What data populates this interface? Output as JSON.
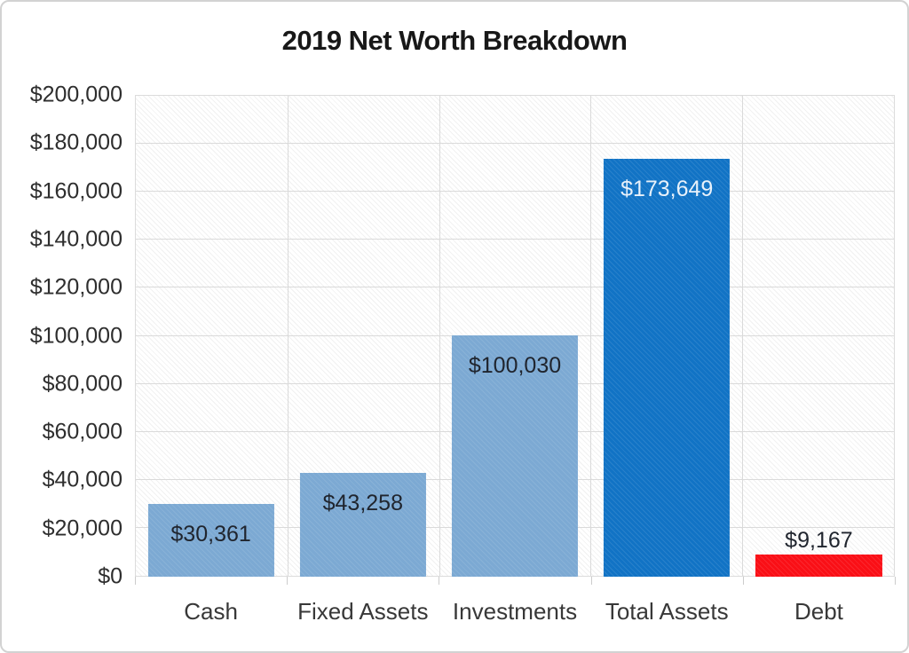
{
  "chart_data": {
    "type": "bar",
    "title": "2019 Net Worth Breakdown",
    "xlabel": "",
    "ylabel": "",
    "categories": [
      "Cash",
      "Fixed Assets",
      "Investments",
      "Total Assets",
      "Debt"
    ],
    "values": [
      30361,
      43258,
      100030,
      173649,
      9167
    ],
    "value_labels": [
      "$30,361",
      "$43,258",
      "$100,030",
      "$173,649",
      "$9,167"
    ],
    "bar_colors": [
      "#7ca9d3",
      "#7ca9d3",
      "#7ca9d3",
      "#1173c5",
      "#fa0f16"
    ],
    "value_label_colors": [
      "#20252e",
      "#20252e",
      "#20252e",
      "#e8f1fa",
      "#20252e"
    ],
    "value_label_placement": [
      "inside",
      "inside",
      "inside",
      "inside",
      "above"
    ],
    "ylim": [
      0,
      200000
    ],
    "ytick_step": 20000,
    "ytick_labels": [
      "$0",
      "$20,000",
      "$40,000",
      "$60,000",
      "$80,000",
      "$100,000",
      "$120,000",
      "$140,000",
      "$160,000",
      "$180,000",
      "$200,000"
    ],
    "grid": true,
    "legend": "none",
    "plot_background": "diagonal-hatch"
  }
}
